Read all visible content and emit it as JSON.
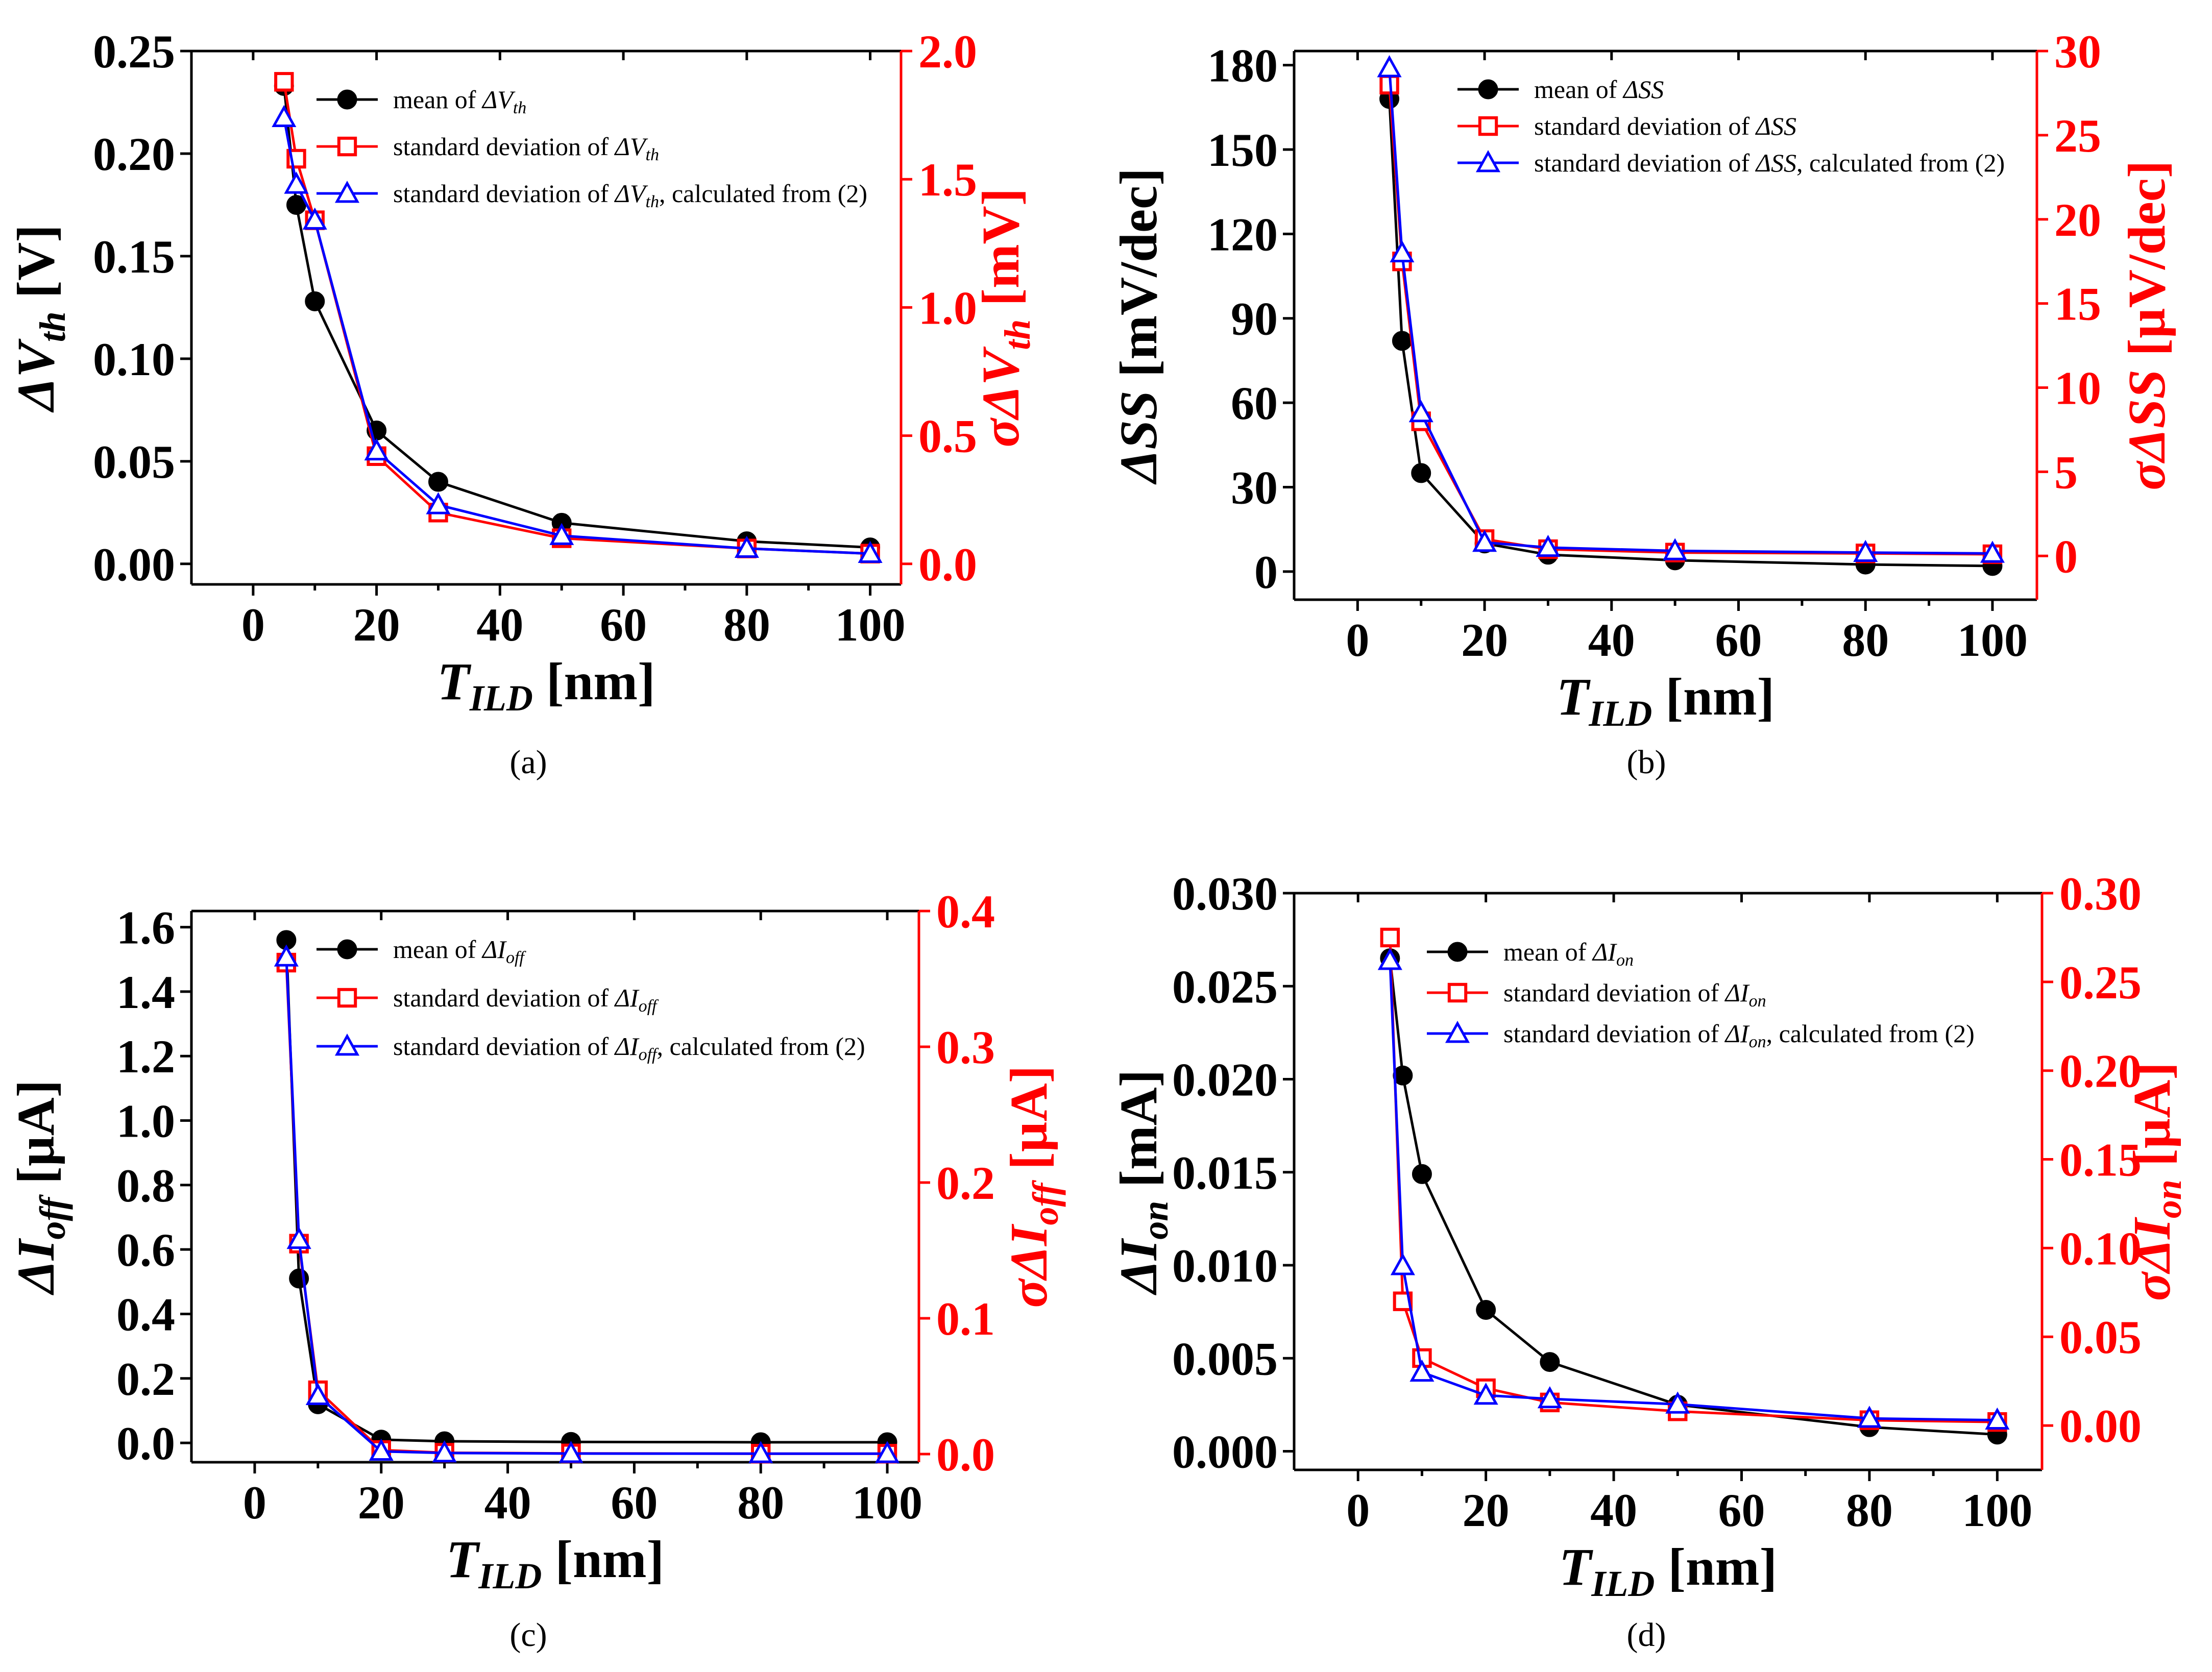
{
  "colors": {
    "mean": "#000000",
    "std": "#ff0000",
    "calc": "#0000ff",
    "axis_right": "#ff0000"
  },
  "chart_data": [
    {
      "id": "a",
      "type": "line",
      "caption": "(a)",
      "xlabel": "T_ILD [nm]",
      "xlabel_main": "T",
      "xlabel_sub": "ILD",
      "xlabel_rest": " [nm]",
      "ylabel_left": "ΔV_th [V]",
      "ylabel_left_main": "ΔV",
      "ylabel_left_sub": "th",
      "ylabel_left_rest": " [V]",
      "ylabel_right": "σΔV_th [mV]",
      "ylabel_right_main": "σΔV",
      "ylabel_right_sub": "th",
      "ylabel_right_rest": " [mV]",
      "xlim": [
        -10,
        105
      ],
      "xticks": [
        0,
        20,
        40,
        60,
        80,
        100
      ],
      "xtick_labels": [
        "0",
        "20",
        "40",
        "60",
        "80",
        "100"
      ],
      "ylim_left": [
        -0.01,
        0.25
      ],
      "yticks_left": [
        0,
        0.05,
        0.1,
        0.15,
        0.2,
        0.25
      ],
      "ytick_labels_left": [
        "0.00",
        "0.05",
        "0.10",
        "0.15",
        "0.20",
        "0.25"
      ],
      "ylim_right": [
        -0.08,
        2.0
      ],
      "yticks_right": [
        0,
        0.5,
        1.0,
        1.5,
        2.0
      ],
      "ytick_labels_right": [
        "0.0",
        "0.5",
        "1.0",
        "1.5",
        "2.0"
      ],
      "series": [
        {
          "name": "mean of ΔV_th",
          "legend_prefix": "mean of ",
          "legend_var": "ΔV",
          "legend_sub": "th",
          "legend_suffix": "",
          "axis": "left",
          "marker": "circle",
          "color": "#000000",
          "x": [
            5,
            7,
            10,
            20,
            30,
            50,
            80,
            100
          ],
          "y": [
            0.233,
            0.175,
            0.128,
            0.065,
            0.04,
            0.02,
            0.011,
            0.008
          ]
        },
        {
          "name": "standard deviation of ΔV_th",
          "legend_prefix": "standard deviation of ",
          "legend_var": "ΔV",
          "legend_sub": "th",
          "legend_suffix": "",
          "axis": "right",
          "marker": "square",
          "color": "#ff0000",
          "x": [
            5,
            7,
            10,
            20,
            30,
            50,
            80,
            100
          ],
          "y": [
            1.88,
            1.58,
            1.34,
            0.42,
            0.2,
            0.1,
            0.06,
            0.04
          ]
        },
        {
          "name": "standard deviation of ΔV_th, calculated from (2)",
          "legend_prefix": "standard deviation of ",
          "legend_var": "ΔV",
          "legend_sub": "th",
          "legend_suffix": ", calculated from (2)",
          "axis": "right",
          "marker": "triangle",
          "color": "#0000ff",
          "x": [
            5,
            7,
            10,
            20,
            30,
            50,
            80,
            100
          ],
          "y": [
            1.74,
            1.48,
            1.34,
            0.44,
            0.23,
            0.11,
            0.06,
            0.04
          ]
        }
      ]
    },
    {
      "id": "b",
      "type": "line",
      "caption": "(b)",
      "xlabel": "T_ILD [nm]",
      "xlabel_main": "T",
      "xlabel_sub": "ILD",
      "xlabel_rest": " [nm]",
      "ylabel_left": "ΔSS [mV/dec]",
      "ylabel_left_main": "ΔSS",
      "ylabel_left_sub": "",
      "ylabel_left_rest": " [mV/dec]",
      "ylabel_right": "σΔSS [µV/dec]",
      "ylabel_right_main": "σΔSS",
      "ylabel_right_sub": "",
      "ylabel_right_rest": " [µV/dec]",
      "xlim": [
        -10,
        107
      ],
      "xticks": [
        0,
        20,
        40,
        60,
        80,
        100
      ],
      "xtick_labels": [
        "0",
        "20",
        "40",
        "60",
        "80",
        "100"
      ],
      "ylim_left": [
        -10,
        185
      ],
      "yticks_left": [
        0,
        30,
        60,
        90,
        120,
        150,
        180
      ],
      "ytick_labels_left": [
        "0",
        "30",
        "60",
        "90",
        "120",
        "150",
        "180"
      ],
      "ylim_right": [
        -2.6,
        30
      ],
      "yticks_right": [
        0,
        5,
        10,
        15,
        20,
        25,
        30
      ],
      "ytick_labels_right": [
        "0",
        "5",
        "10",
        "15",
        "20",
        "25",
        "30"
      ],
      "series": [
        {
          "name": "mean of ΔSS",
          "legend_prefix": "mean of ",
          "legend_var": "ΔSS",
          "legend_sub": "",
          "legend_suffix": "",
          "axis": "left",
          "marker": "circle",
          "color": "#000000",
          "x": [
            5,
            7,
            10,
            20,
            30,
            50,
            80,
            100
          ],
          "y": [
            168,
            82,
            35,
            10,
            6,
            4,
            2.5,
            2
          ]
        },
        {
          "name": "standard deviation of ΔSS",
          "legend_prefix": "standard deviation of ",
          "legend_var": "ΔSS",
          "legend_sub": "",
          "legend_suffix": "",
          "axis": "right",
          "marker": "square",
          "color": "#ff0000",
          "x": [
            5,
            7,
            10,
            20,
            30,
            50,
            80,
            100
          ],
          "y": [
            28,
            17.5,
            8,
            1.0,
            0.4,
            0.2,
            0.15,
            0.1
          ]
        },
        {
          "name": "standard deviation of ΔSS, calculated from (2)",
          "legend_prefix": "standard deviation of ",
          "legend_var": "ΔSS",
          "legend_sub": "",
          "legend_suffix": ", calculated from (2)",
          "axis": "right",
          "marker": "triangle",
          "color": "#0000ff",
          "x": [
            5,
            7,
            10,
            20,
            30,
            50,
            80,
            100
          ],
          "y": [
            29,
            18,
            8.5,
            0.8,
            0.5,
            0.3,
            0.2,
            0.15
          ]
        }
      ]
    },
    {
      "id": "c",
      "type": "line",
      "caption": "(c)",
      "xlabel": "T_ILD [nm]",
      "xlabel_main": "T",
      "xlabel_sub": "ILD",
      "xlabel_rest": " [nm]",
      "ylabel_left": "ΔI_off [µA]",
      "ylabel_left_main": "ΔI",
      "ylabel_left_sub": "off",
      "ylabel_left_rest": " [µA]",
      "ylabel_right": "σΔI_off [µA]",
      "ylabel_right_main": "σΔI",
      "ylabel_right_sub": "off",
      "ylabel_right_rest": " [µA]",
      "xlim": [
        -10,
        105
      ],
      "xticks": [
        0,
        20,
        40,
        60,
        80,
        100
      ],
      "xtick_labels": [
        "0",
        "20",
        "40",
        "60",
        "80",
        "100"
      ],
      "ylim_left": [
        -0.06,
        1.65
      ],
      "yticks_left": [
        0,
        0.2,
        0.4,
        0.6,
        0.8,
        1.0,
        1.2,
        1.4,
        1.6
      ],
      "ytick_labels_left": [
        "0.0",
        "0.2",
        "0.4",
        "0.6",
        "0.8",
        "1.0",
        "1.2",
        "1.4",
        "1.6"
      ],
      "ylim_right": [
        -0.006,
        0.4
      ],
      "yticks_right": [
        0,
        0.1,
        0.2,
        0.3,
        0.4
      ],
      "ytick_labels_right": [
        "0.0",
        "0.1",
        "0.2",
        "0.3",
        "0.4"
      ],
      "series": [
        {
          "name": "mean of ΔI_off",
          "legend_prefix": "mean of ",
          "legend_var": "ΔI",
          "legend_sub": "off",
          "legend_suffix": "",
          "axis": "left",
          "marker": "circle",
          "color": "#000000",
          "x": [
            5,
            7,
            10,
            20,
            30,
            50,
            80,
            100
          ],
          "y": [
            1.56,
            0.51,
            0.12,
            0.01,
            0.005,
            0.003,
            0.002,
            0.002
          ]
        },
        {
          "name": "standard deviation of ΔI_off",
          "legend_prefix": "standard deviation of ",
          "legend_var": "ΔI",
          "legend_sub": "off",
          "legend_suffix": "",
          "axis": "right",
          "marker": "square",
          "color": "#ff0000",
          "x": [
            5,
            7,
            10,
            20,
            30,
            50,
            80,
            100
          ],
          "y": [
            0.362,
            0.155,
            0.047,
            0.003,
            0.001,
            0.0005,
            0.0003,
            0.0003
          ]
        },
        {
          "name": "standard deviation of ΔI_off, calculated from (2)",
          "legend_prefix": "standard deviation of ",
          "legend_var": "ΔI",
          "legend_sub": "off",
          "legend_suffix": ", calculated from (2)",
          "axis": "right",
          "marker": "triangle",
          "color": "#0000ff",
          "x": [
            5,
            7,
            10,
            20,
            30,
            50,
            80,
            100
          ],
          "y": [
            0.366,
            0.158,
            0.043,
            0.002,
            0.0008,
            0.0004,
            0.0003,
            0.0003
          ]
        }
      ]
    },
    {
      "id": "d",
      "type": "line",
      "caption": "(d)",
      "xlabel": "T_ILD [nm]",
      "xlabel_main": "T",
      "xlabel_sub": "ILD",
      "xlabel_rest": " [nm]",
      "ylabel_left": "ΔI_on [mA]",
      "ylabel_left_main": "ΔI",
      "ylabel_left_sub": "on",
      "ylabel_left_rest": " [mA]",
      "ylabel_right": "σΔI_on [µA]",
      "ylabel_right_main": "σΔI",
      "ylabel_right_sub": "on",
      "ylabel_right_rest": " [µA]",
      "xlim": [
        -10,
        107
      ],
      "xticks": [
        0,
        20,
        40,
        60,
        80,
        100
      ],
      "xtick_labels": [
        "0",
        "20",
        "40",
        "60",
        "80",
        "100"
      ],
      "ylim_left": [
        -0.001,
        0.03
      ],
      "yticks_left": [
        0,
        0.005,
        0.01,
        0.015,
        0.02,
        0.025,
        0.03
      ],
      "ytick_labels_left": [
        "0.000",
        "0.005",
        "0.010",
        "0.015",
        "0.020",
        "0.025",
        "0.030"
      ],
      "ylim_right": [
        -0.025,
        0.3
      ],
      "yticks_right": [
        0,
        0.05,
        0.1,
        0.15,
        0.2,
        0.25,
        0.3
      ],
      "ytick_labels_right": [
        "0.00",
        "0.05",
        "0.10",
        "0.15",
        "0.20",
        "0.25",
        "0.30"
      ],
      "series": [
        {
          "name": "mean of ΔI_on",
          "legend_prefix": "mean of ",
          "legend_var": "ΔI",
          "legend_sub": "on",
          "legend_suffix": "",
          "axis": "left",
          "marker": "circle",
          "color": "#000000",
          "x": [
            5,
            7,
            10,
            20,
            30,
            50,
            80,
            100
          ],
          "y": [
            0.0265,
            0.0202,
            0.0149,
            0.0076,
            0.0048,
            0.0025,
            0.0013,
            0.0009
          ]
        },
        {
          "name": "standard deviation of ΔI_on",
          "legend_prefix": "standard deviation of ",
          "legend_var": "ΔI",
          "legend_sub": "on",
          "legend_suffix": "",
          "axis": "right",
          "marker": "square",
          "color": "#ff0000",
          "x": [
            5,
            7,
            10,
            20,
            30,
            50,
            80,
            100
          ],
          "y": [
            0.275,
            0.07,
            0.038,
            0.021,
            0.013,
            0.008,
            0.003,
            0.002
          ]
        },
        {
          "name": "standard deviation of ΔI_on, calculated from (2)",
          "legend_prefix": "standard deviation of ",
          "legend_var": "ΔI",
          "legend_sub": "on",
          "legend_suffix": ", calculated from (2)",
          "axis": "right",
          "marker": "triangle",
          "color": "#0000ff",
          "x": [
            5,
            7,
            10,
            20,
            30,
            50,
            80,
            100
          ],
          "y": [
            0.262,
            0.09,
            0.03,
            0.017,
            0.015,
            0.012,
            0.004,
            0.003
          ]
        }
      ]
    }
  ]
}
